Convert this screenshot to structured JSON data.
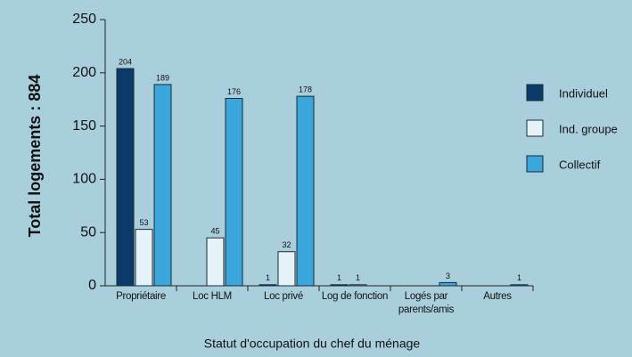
{
  "chart_data": {
    "type": "bar",
    "ylabel": "Total logements : 884",
    "xlabel": "Statut d'occupation du chef du ménage",
    "categories": [
      "Propriétaire",
      "Loc HLM",
      "Loc privé",
      "Log de fonction",
      "Logés par parents/amis",
      "Autres"
    ],
    "series": [
      {
        "name": "Individuel",
        "color": "#0b3a6a",
        "values": [
          204,
          0,
          1,
          1,
          0,
          0
        ]
      },
      {
        "name": "Ind. groupe",
        "color": "#e6f3f8",
        "values": [
          53,
          45,
          32,
          1,
          0,
          0
        ]
      },
      {
        "name": "Collectif",
        "color": "#3aa6dc",
        "values": [
          189,
          176,
          178,
          0,
          3,
          1
        ]
      }
    ],
    "ylim": [
      0,
      250
    ],
    "yticks": [
      0,
      50,
      100,
      150,
      200,
      250
    ]
  }
}
